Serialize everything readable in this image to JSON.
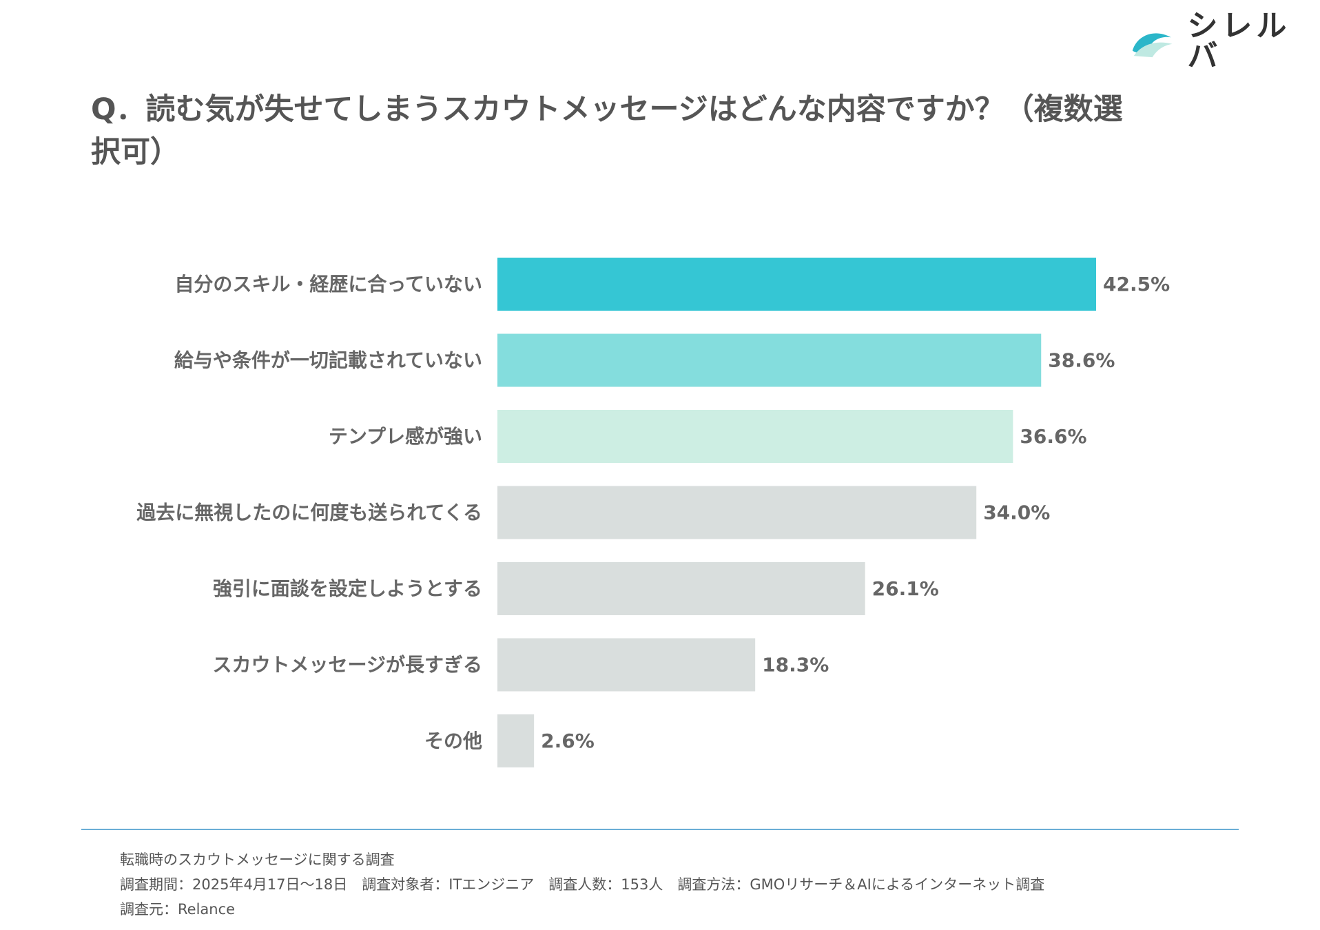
{
  "brand": {
    "name": "シレルバ",
    "colors": {
      "wave_dark": "#2bb6c9",
      "wave_light": "#bfe9e2"
    }
  },
  "title": "Q．読む気が失せてしまうスカウトメッセージはどんな内容ですか？（複数選択可）",
  "chart_data": {
    "type": "bar",
    "orientation": "horizontal",
    "title": "Q．読む気が失せてしまうスカウトメッセージはどんな内容ですか？（複数選択可）",
    "categories": [
      "自分のスキル・経歴に合っていない",
      "給与や条件が一切記載されていない",
      "テンプレ感が強い",
      "過去に無視したのに何度も送られてくる",
      "強引に面談を設定しようとする",
      "スカウトメッセージが長すぎる",
      "その他"
    ],
    "values": [
      42.5,
      38.6,
      36.6,
      34.0,
      26.1,
      18.3,
      2.6
    ],
    "value_labels": [
      "42.5%",
      "38.6%",
      "36.6%",
      "34.0%",
      "26.1%",
      "18.3%",
      "2.6%"
    ],
    "unit": "%",
    "xlim": [
      0,
      42.5
    ],
    "colors": [
      "#35c6d4",
      "#84dddd",
      "#cdeee3",
      "#d9dedd",
      "#d9dedd",
      "#d9dedd",
      "#d9dedd"
    ],
    "grid": false,
    "legend": "none"
  },
  "footer": {
    "line1": "転職時のスカウトメッセージに関する調査",
    "line2": "調査期間：2025年4月17日〜18日　調査対象者：ITエンジニア　調査人数：153人　調査方法：GMOリサーチ＆AIによるインターネット調査",
    "line3": "調査元：Relance"
  }
}
